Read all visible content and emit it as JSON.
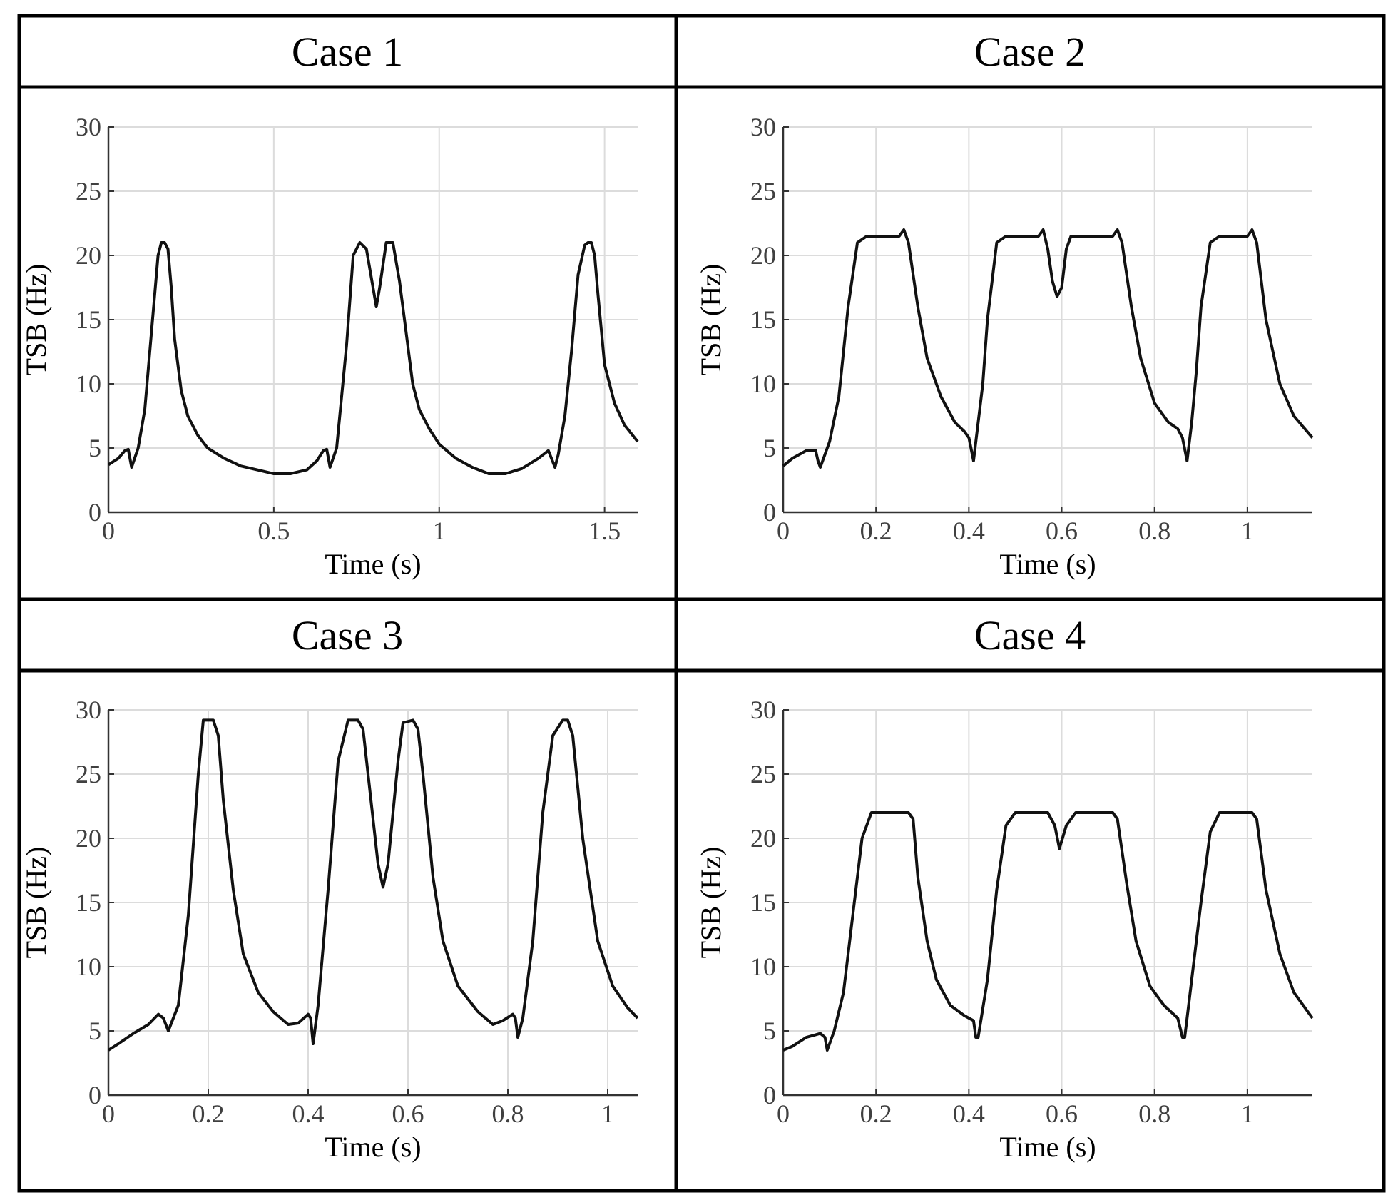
{
  "chart_data": [
    {
      "type": "line",
      "title": "Case 1",
      "xlabel": "Time (s)",
      "ylabel": "TSB (Hz)",
      "xlim": [
        0,
        1.6
      ],
      "ylim": [
        0,
        30
      ],
      "xticks": [
        0,
        0.5,
        1,
        1.5
      ],
      "xtick_labels": [
        "0",
        "0.5",
        "1",
        "1.5"
      ],
      "yticks": [
        0,
        5,
        10,
        15,
        20,
        25,
        30
      ],
      "ytick_labels": [
        "0",
        "5",
        "10",
        "15",
        "20",
        "25",
        "30"
      ],
      "grid": true,
      "series": [
        {
          "name": "TSB",
          "x": [
            0,
            0.03,
            0.05,
            0.06,
            0.07,
            0.09,
            0.11,
            0.13,
            0.15,
            0.16,
            0.17,
            0.18,
            0.19,
            0.2,
            0.22,
            0.24,
            0.27,
            0.3,
            0.35,
            0.4,
            0.45,
            0.5,
            0.55,
            0.6,
            0.63,
            0.65,
            0.66,
            0.67,
            0.69,
            0.72,
            0.74,
            0.76,
            0.78,
            0.8,
            0.81,
            0.82,
            0.84,
            0.86,
            0.88,
            0.9,
            0.92,
            0.94,
            0.97,
            1.0,
            1.05,
            1.1,
            1.15,
            1.2,
            1.25,
            1.3,
            1.33,
            1.35,
            1.36,
            1.38,
            1.4,
            1.42,
            1.44,
            1.45,
            1.46,
            1.47,
            1.48,
            1.5,
            1.53,
            1.56,
            1.6
          ],
          "y": [
            3.7,
            4.2,
            4.8,
            4.9,
            3.5,
            5.0,
            8.0,
            14.0,
            20.0,
            21.0,
            21.0,
            20.5,
            17.5,
            13.5,
            9.5,
            7.5,
            6.0,
            5.0,
            4.2,
            3.6,
            3.3,
            3.0,
            3.0,
            3.3,
            4.0,
            4.8,
            4.9,
            3.5,
            5.0,
            13.0,
            20.0,
            21.0,
            20.5,
            17.5,
            16.0,
            17.5,
            21.0,
            21.0,
            18.0,
            14.0,
            10.0,
            8.0,
            6.5,
            5.3,
            4.2,
            3.5,
            3.0,
            3.0,
            3.4,
            4.2,
            4.8,
            3.5,
            4.5,
            7.5,
            12.5,
            18.5,
            20.8,
            21.0,
            21.0,
            20.0,
            17.0,
            11.5,
            8.5,
            6.8,
            5.5
          ]
        }
      ]
    },
    {
      "type": "line",
      "title": "Case 2",
      "xlabel": "Time (s)",
      "ylabel": "TSB (Hz)",
      "xlim": [
        0,
        1.14
      ],
      "ylim": [
        0,
        30
      ],
      "xticks": [
        0,
        0.2,
        0.4,
        0.6,
        0.8,
        1
      ],
      "xtick_labels": [
        "0",
        "0.2",
        "0.4",
        "0.6",
        "0.8",
        "1"
      ],
      "yticks": [
        0,
        5,
        10,
        15,
        20,
        25,
        30
      ],
      "ytick_labels": [
        "0",
        "5",
        "10",
        "15",
        "20",
        "25",
        "30"
      ],
      "grid": true,
      "series": [
        {
          "name": "TSB",
          "x": [
            0,
            0.02,
            0.05,
            0.07,
            0.075,
            0.08,
            0.1,
            0.12,
            0.14,
            0.16,
            0.18,
            0.25,
            0.26,
            0.27,
            0.29,
            0.31,
            0.34,
            0.37,
            0.39,
            0.4,
            0.41,
            0.42,
            0.43,
            0.44,
            0.46,
            0.48,
            0.55,
            0.56,
            0.57,
            0.58,
            0.59,
            0.6,
            0.61,
            0.62,
            0.63,
            0.71,
            0.72,
            0.73,
            0.75,
            0.77,
            0.8,
            0.83,
            0.85,
            0.86,
            0.87,
            0.88,
            0.89,
            0.9,
            0.92,
            0.94,
            1.0,
            1.01,
            1.02,
            1.04,
            1.07,
            1.1,
            1.14
          ],
          "y": [
            3.6,
            4.2,
            4.8,
            4.8,
            4.0,
            3.5,
            5.5,
            9.0,
            16.0,
            21.0,
            21.5,
            21.5,
            22.0,
            21.0,
            16.0,
            12.0,
            9.0,
            7.0,
            6.3,
            5.8,
            4.0,
            7.0,
            10.0,
            15.0,
            21.0,
            21.5,
            21.5,
            22.0,
            20.5,
            18.0,
            16.8,
            17.5,
            20.5,
            21.5,
            21.5,
            21.5,
            22.0,
            21.0,
            16.0,
            12.0,
            8.5,
            7.0,
            6.5,
            5.8,
            4.0,
            7.0,
            11.0,
            16.0,
            21.0,
            21.5,
            21.5,
            22.0,
            21.0,
            15.0,
            10.0,
            7.5,
            5.8
          ]
        }
      ]
    },
    {
      "type": "line",
      "title": "Case 3",
      "xlabel": "Time (s)",
      "ylabel": "TSB (Hz)",
      "xlim": [
        0,
        1.06
      ],
      "ylim": [
        0,
        30
      ],
      "xticks": [
        0,
        0.2,
        0.4,
        0.6,
        0.8,
        1
      ],
      "xtick_labels": [
        "0",
        "0.2",
        "0.4",
        "0.6",
        "0.8",
        "1"
      ],
      "yticks": [
        0,
        5,
        10,
        15,
        20,
        25,
        30
      ],
      "ytick_labels": [
        "0",
        "5",
        "10",
        "15",
        "20",
        "25",
        "30"
      ],
      "grid": true,
      "series": [
        {
          "name": "TSB",
          "x": [
            0,
            0.02,
            0.05,
            0.08,
            0.1,
            0.11,
            0.12,
            0.14,
            0.16,
            0.18,
            0.19,
            0.21,
            0.22,
            0.23,
            0.25,
            0.27,
            0.3,
            0.33,
            0.36,
            0.38,
            0.4,
            0.405,
            0.41,
            0.42,
            0.44,
            0.46,
            0.48,
            0.5,
            0.51,
            0.52,
            0.54,
            0.55,
            0.56,
            0.58,
            0.59,
            0.61,
            0.62,
            0.63,
            0.65,
            0.67,
            0.7,
            0.74,
            0.77,
            0.79,
            0.81,
            0.815,
            0.82,
            0.83,
            0.85,
            0.87,
            0.89,
            0.91,
            0.92,
            0.93,
            0.95,
            0.98,
            1.01,
            1.04,
            1.06
          ],
          "y": [
            3.5,
            4.0,
            4.8,
            5.5,
            6.3,
            6.0,
            5.0,
            7.0,
            14.0,
            25.0,
            29.2,
            29.2,
            28.0,
            23.0,
            16.0,
            11.0,
            8.0,
            6.5,
            5.5,
            5.6,
            6.3,
            6.0,
            4.0,
            7.0,
            16.0,
            26.0,
            29.2,
            29.2,
            28.5,
            25.0,
            18.0,
            16.2,
            18.0,
            26.0,
            29.0,
            29.2,
            28.5,
            25.0,
            17.0,
            12.0,
            8.5,
            6.5,
            5.5,
            5.8,
            6.3,
            6.0,
            4.5,
            6.0,
            12.0,
            22.0,
            28.0,
            29.2,
            29.2,
            28.0,
            20.0,
            12.0,
            8.5,
            6.8,
            6.0
          ]
        }
      ]
    },
    {
      "type": "line",
      "title": "Case 4",
      "xlabel": "Time (s)",
      "ylabel": "TSB (Hz)",
      "xlim": [
        0,
        1.14
      ],
      "ylim": [
        0,
        30
      ],
      "xticks": [
        0,
        0.2,
        0.4,
        0.6,
        0.8,
        1
      ],
      "xtick_labels": [
        "0",
        "0.2",
        "0.4",
        "0.6",
        "0.8",
        "1"
      ],
      "yticks": [
        0,
        5,
        10,
        15,
        20,
        25,
        30
      ],
      "ytick_labels": [
        "0",
        "5",
        "10",
        "15",
        "20",
        "25",
        "30"
      ],
      "grid": true,
      "series": [
        {
          "name": "TSB",
          "x": [
            0,
            0.02,
            0.05,
            0.08,
            0.09,
            0.095,
            0.11,
            0.13,
            0.15,
            0.17,
            0.19,
            0.27,
            0.28,
            0.29,
            0.31,
            0.33,
            0.36,
            0.39,
            0.41,
            0.415,
            0.42,
            0.44,
            0.46,
            0.48,
            0.5,
            0.57,
            0.585,
            0.595,
            0.61,
            0.63,
            0.71,
            0.72,
            0.74,
            0.76,
            0.79,
            0.82,
            0.85,
            0.86,
            0.865,
            0.87,
            0.88,
            0.9,
            0.92,
            0.94,
            1.01,
            1.02,
            1.04,
            1.07,
            1.1,
            1.14
          ],
          "y": [
            3.5,
            3.8,
            4.5,
            4.8,
            4.5,
            3.5,
            5.0,
            8.0,
            14.0,
            20.0,
            22.0,
            22.0,
            21.5,
            17.0,
            12.0,
            9.0,
            7.0,
            6.2,
            5.8,
            4.5,
            4.5,
            9.0,
            16.0,
            21.0,
            22.0,
            22.0,
            21.0,
            19.2,
            21.0,
            22.0,
            22.0,
            21.5,
            16.5,
            12.0,
            8.5,
            7.0,
            6.0,
            4.5,
            4.5,
            6.0,
            9.0,
            15.0,
            20.5,
            22.0,
            22.0,
            21.5,
            16.0,
            11.0,
            8.0,
            6.0
          ]
        }
      ]
    }
  ]
}
